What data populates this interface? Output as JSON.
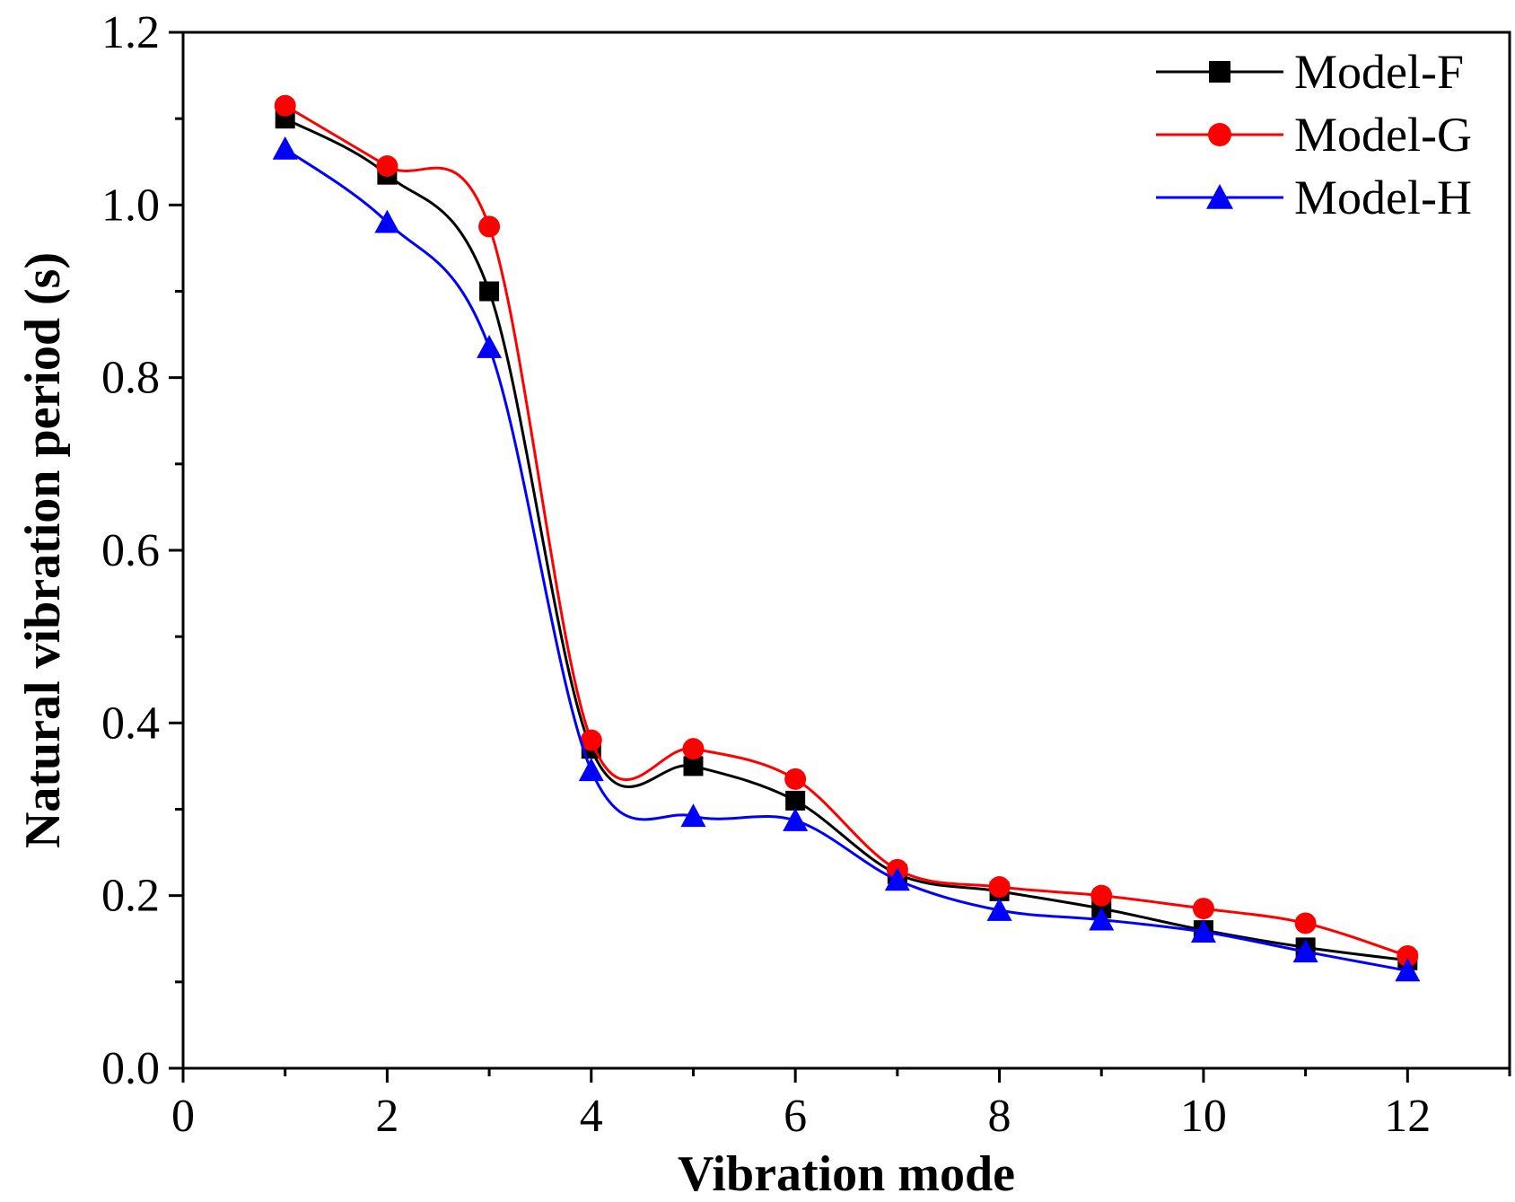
{
  "chart_data": {
    "type": "line",
    "title": "",
    "xlabel": "Vibration mode",
    "ylabel": "Natural vibration period (s)",
    "xlim": [
      0,
      13
    ],
    "ylim": [
      0.0,
      1.2
    ],
    "xticks": [
      0,
      2,
      4,
      6,
      8,
      10,
      12
    ],
    "xtick_labels": [
      "0",
      "2",
      "4",
      "6",
      "8",
      "10",
      "12"
    ],
    "yticks": [
      0.0,
      0.2,
      0.4,
      0.6,
      0.8,
      1.0,
      1.2
    ],
    "ytick_labels": [
      "0.0",
      "0.2",
      "0.4",
      "0.6",
      "0.8",
      "1.0",
      "1.2"
    ],
    "grid": false,
    "legend_position": "top-right",
    "x": [
      1,
      2,
      3,
      4,
      5,
      6,
      7,
      8,
      9,
      10,
      11,
      12
    ],
    "series": [
      {
        "name": "Model-F",
        "color": "#000000",
        "marker": "square",
        "values": [
          1.1,
          1.035,
          0.9,
          0.37,
          0.35,
          0.31,
          0.225,
          0.205,
          0.185,
          0.16,
          0.14,
          0.125
        ]
      },
      {
        "name": "Model-G",
        "color": "#ff0000",
        "marker": "circle",
        "values": [
          1.115,
          1.045,
          0.975,
          0.38,
          0.37,
          0.335,
          0.23,
          0.21,
          0.2,
          0.185,
          0.168,
          0.13
        ]
      },
      {
        "name": "Model-H",
        "color": "#0000ff",
        "marker": "triangle",
        "values": [
          1.065,
          0.98,
          0.835,
          0.345,
          0.292,
          0.287,
          0.218,
          0.183,
          0.172,
          0.158,
          0.135,
          0.113
        ]
      }
    ]
  }
}
